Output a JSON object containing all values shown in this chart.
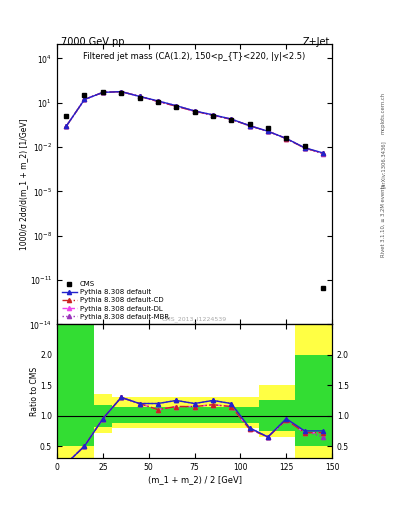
{
  "title_top": "7000 GeV pp",
  "title_right": "Z+Jet",
  "plot_title": "Filtered jet mass (CA(1.2), 150<p_{T}<220, |y|<2.5)",
  "xlabel": "(m_1 + m_2) / 2 [GeV]",
  "ylabel_main": "1000/σ 2dσ/d(m_1 + m_2) [1/GeV]",
  "ylabel_ratio": "Ratio to CMS",
  "watermark": "CMS_2013_I1224539",
  "rivet_text": "Rivet 3.1.10, ≥ 3.2M events",
  "arxiv_text": "[arXiv:1306.3436]",
  "mcplots_text": "mcplots.cern.ch",
  "cms_x": [
    5,
    15,
    25,
    35,
    45,
    55,
    65,
    75,
    85,
    95,
    105,
    115,
    125,
    135,
    145
  ],
  "cms_y": [
    1.2,
    33.0,
    52.0,
    43.0,
    22.0,
    11.0,
    5.0,
    2.3,
    1.2,
    0.65,
    0.35,
    0.18,
    0.04,
    0.012,
    3e-12
  ],
  "pythia_x": [
    5,
    15,
    25,
    35,
    45,
    55,
    65,
    75,
    85,
    95,
    105,
    115,
    125,
    135,
    145
  ],
  "pythia_default_y": [
    0.25,
    16.5,
    49.5,
    56.0,
    26.5,
    13.2,
    6.25,
    2.76,
    1.5,
    0.78,
    0.28,
    0.117,
    0.038,
    0.009,
    0.004
  ],
  "pythia_cd_y": [
    0.25,
    16.5,
    49.5,
    56.0,
    26.5,
    12.1,
    5.75,
    2.64,
    1.41,
    0.75,
    0.273,
    0.117,
    0.037,
    0.0086,
    0.0038
  ],
  "pythia_dl_y": [
    0.25,
    16.5,
    49.5,
    56.0,
    26.5,
    12.1,
    5.75,
    2.64,
    1.41,
    0.75,
    0.273,
    0.117,
    0.037,
    0.0086,
    0.0038
  ],
  "pythia_mbr_y": [
    0.25,
    16.5,
    49.5,
    56.0,
    26.5,
    13.2,
    6.25,
    2.76,
    1.5,
    0.78,
    0.28,
    0.117,
    0.038,
    0.009,
    0.0035
  ],
  "ratio_x": [
    5,
    15,
    25,
    35,
    45,
    55,
    65,
    75,
    85,
    95,
    105,
    115,
    125,
    135,
    145
  ],
  "ratio_default": [
    0.21,
    0.5,
    0.95,
    1.3,
    1.2,
    1.2,
    1.25,
    1.2,
    1.25,
    1.2,
    0.8,
    0.65,
    0.95,
    0.75,
    0.75
  ],
  "ratio_cd": [
    0.21,
    0.5,
    0.95,
    1.3,
    1.2,
    1.1,
    1.15,
    1.15,
    1.18,
    1.15,
    0.78,
    0.65,
    0.93,
    0.72,
    0.72
  ],
  "ratio_dl": [
    0.21,
    0.5,
    0.95,
    1.3,
    1.2,
    1.1,
    1.15,
    1.15,
    1.18,
    1.15,
    0.78,
    0.65,
    0.93,
    0.72,
    0.72
  ],
  "ratio_mbr": [
    0.21,
    0.5,
    0.95,
    1.3,
    1.2,
    1.2,
    1.25,
    1.2,
    1.25,
    1.2,
    0.8,
    0.65,
    0.95,
    0.75,
    0.65
  ],
  "band_edges": [
    0,
    10,
    20,
    30,
    110,
    130,
    150
  ],
  "green_lo": [
    0.5,
    0.5,
    0.82,
    0.88,
    0.75,
    0.5,
    0.5
  ],
  "green_hi": [
    2.5,
    2.5,
    1.18,
    1.15,
    1.25,
    2.0,
    2.5
  ],
  "yellow_lo": [
    0.3,
    0.3,
    0.72,
    0.8,
    0.65,
    0.3,
    0.3
  ],
  "yellow_hi": [
    3.0,
    3.0,
    1.35,
    1.3,
    1.5,
    3.0,
    3.0
  ],
  "color_default": "#2222cc",
  "color_cd": "#cc2222",
  "color_dl": "#ee44ee",
  "color_mbr": "#9933bb",
  "color_cms": "#000000",
  "xlim": [
    0,
    150
  ],
  "ylim_main": [
    1e-14,
    100000.0
  ],
  "ylim_ratio": [
    0.3,
    2.5
  ],
  "ratio_yticks": [
    0.5,
    1.0,
    1.5,
    2.0
  ],
  "green_color": "#33dd33",
  "yellow_color": "#ffff44"
}
